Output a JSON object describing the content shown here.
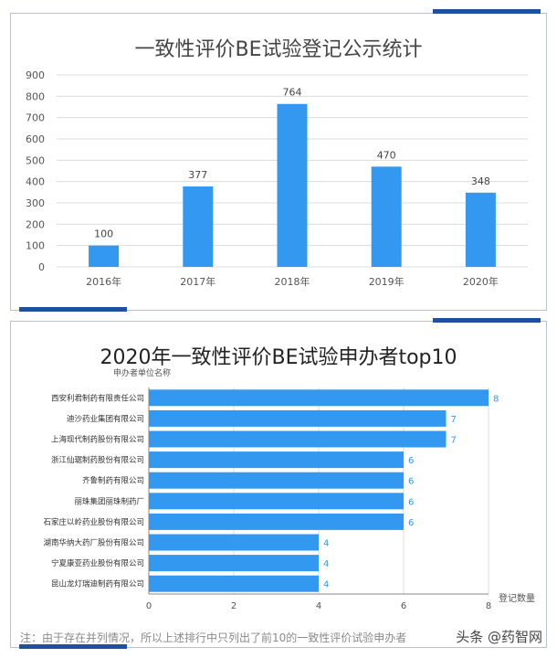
{
  "chart_data": [
    {
      "type": "bar",
      "title": "一致性评价BE试验登记公示统计",
      "categories": [
        "2016年",
        "2017年",
        "2018年",
        "2019年",
        "2020年"
      ],
      "values": [
        100,
        377,
        764,
        470,
        348
      ],
      "ylim": [
        0,
        900
      ],
      "yticks": [
        0,
        100,
        200,
        300,
        400,
        500,
        600,
        700,
        800,
        900
      ],
      "grid": true,
      "bar_color": "#3399f0"
    },
    {
      "type": "bar",
      "orientation": "horizontal",
      "title": "2020年一致性评价BE试验申办者top10",
      "ylabel": "申办者单位名称",
      "xlabel": "登记数量",
      "categories": [
        "西安利君制药有限责任公司",
        "迪沙药业集团有限公司",
        "上海现代制药股份有限公司",
        "浙江仙琚制药股份有限公司",
        "齐鲁制药有限公司",
        "丽珠集团丽珠制药厂",
        "石家庄以岭药业股份有限公司",
        "湖南华纳大药厂股份有限公司",
        "宁夏康亚药业股份有限公司",
        "昆山龙灯瑞迪制药有限公司"
      ],
      "values": [
        8,
        7,
        7,
        6,
        6,
        6,
        6,
        4,
        4,
        4
      ],
      "xlim": [
        0,
        8
      ],
      "xticks": [
        0,
        2,
        4,
        6,
        8
      ],
      "grid": true,
      "bar_color": "#3399f0"
    }
  ],
  "footnote": "注：由于存在并列情况，所以上述排行中只列出了前10的一致性评价试验申办者",
  "watermark": "头条 @药智网",
  "colors": {
    "accent": "#1e4fa0",
    "bar": "#3399f0",
    "grid": "#dcdcdc"
  }
}
